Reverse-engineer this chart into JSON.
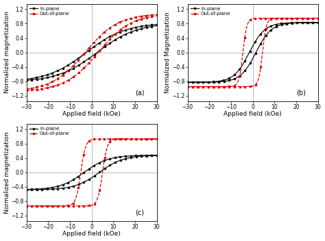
{
  "title": "",
  "subplots": [
    "(a)",
    "(b)",
    "(c)"
  ],
  "xlabel": "Applied field (kOe)",
  "ylabel_a": "Normalized magnetization",
  "ylabel_b": "Normalized Magnetization",
  "ylabel_c": "Normalized magnetization",
  "xlim": [
    -30,
    30
  ],
  "ylim": [
    -1.35,
    1.35
  ],
  "yticks": [
    -1.2,
    -0.8,
    -0.4,
    0.0,
    0.4,
    0.8,
    1.2
  ],
  "xticks": [
    -30,
    -20,
    -10,
    0,
    10,
    20,
    30
  ],
  "legend_labels": [
    "In-plane",
    "Out-of-plane"
  ],
  "black_color": "#111111",
  "red_color": "#dd0000",
  "background": "#ffffff",
  "a_ip_sat": 0.82,
  "a_ip_coercive": 2.5,
  "a_ip_steep": 0.055,
  "a_oop_sat": 1.08,
  "a_oop_coercive": 3.0,
  "a_oop_steep": 0.065,
  "b_ip_sat": 0.83,
  "b_ip_coercive": 1.5,
  "b_ip_steep": 0.14,
  "b_oop_sat": 0.95,
  "b_oop_coercive": 4.5,
  "b_oop_steep": 0.55,
  "c_ip_sat": 0.48,
  "c_ip_coercive": 3.5,
  "c_ip_steep": 0.09,
  "c_oop_sat": 0.93,
  "c_oop_coercive": 5.0,
  "c_oop_steep": 0.45
}
